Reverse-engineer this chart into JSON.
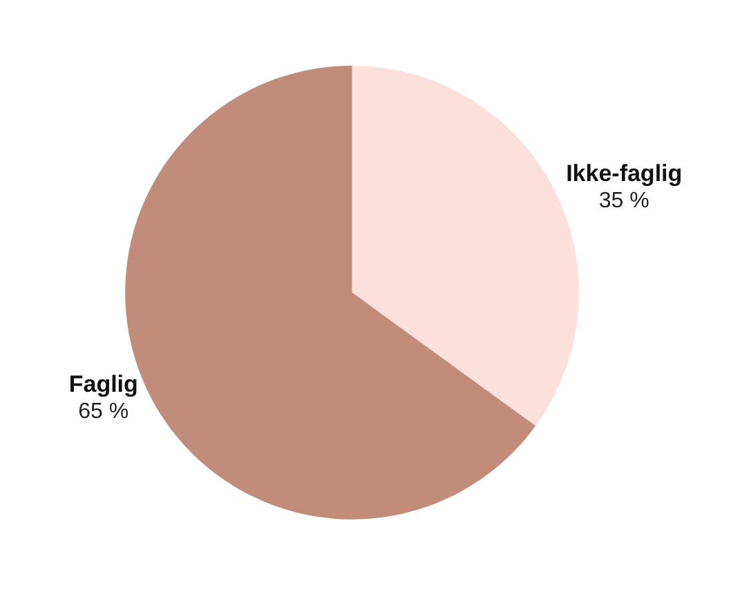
{
  "chart_data": {
    "type": "pie",
    "categories": [
      "Ikke-faglig",
      "Faglig"
    ],
    "values": [
      35,
      65
    ],
    "colors": [
      "#fbe0dc",
      "#c18d7a"
    ],
    "value_labels": [
      "35 %",
      "65 %"
    ],
    "legend": false
  }
}
